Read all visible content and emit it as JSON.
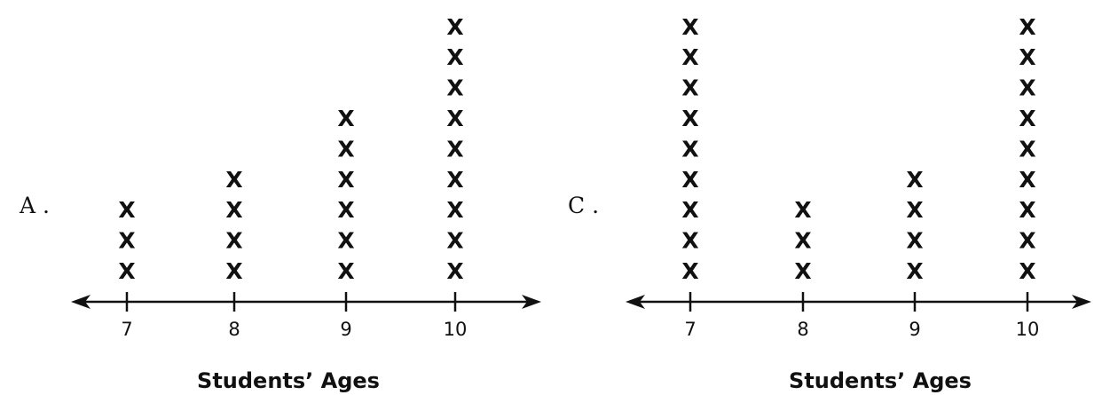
{
  "chart_data": [
    {
      "type": "dot",
      "option_label": "A .",
      "xlabel": "Students’ Ages",
      "x": [
        7,
        8,
        9,
        10
      ],
      "tick_labels": [
        "7",
        "8",
        "9",
        "10"
      ],
      "values": [
        3,
        4,
        6,
        9
      ],
      "marker": "X"
    },
    {
      "type": "dot",
      "option_label": "C .",
      "xlabel": "Students’ Ages",
      "x": [
        7,
        8,
        9,
        10
      ],
      "tick_labels": [
        "7",
        "8",
        "9",
        "10"
      ],
      "values": [
        9,
        3,
        4,
        9
      ],
      "marker": "X"
    }
  ]
}
